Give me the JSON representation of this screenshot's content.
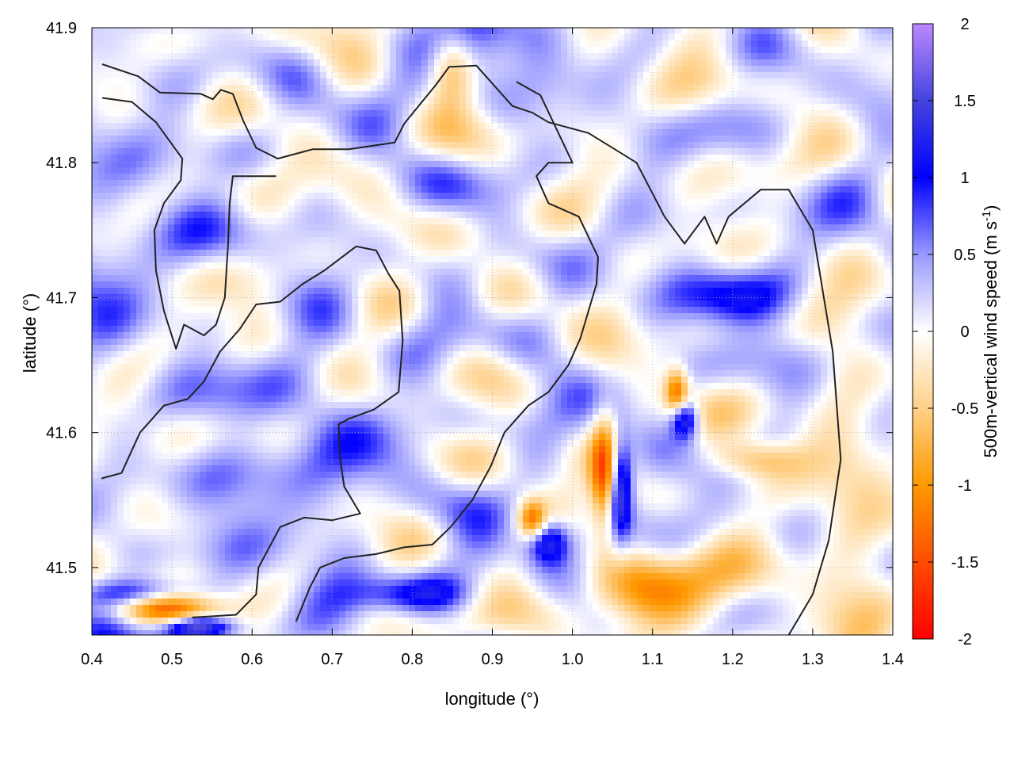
{
  "chart_data": {
    "type": "heatmap",
    "xlabel": "longitude (°)",
    "ylabel": "latitude (°)",
    "xlim": [
      0.4,
      1.4
    ],
    "ylim": [
      41.45,
      41.9
    ],
    "x_ticks": [
      0.4,
      0.5,
      0.6,
      0.7,
      0.8,
      0.9,
      1.0,
      1.1,
      1.2,
      1.3,
      1.4
    ],
    "y_ticks": [
      41.5,
      41.6,
      41.7,
      41.8,
      41.9
    ],
    "x_tick_labels": [
      "0.4",
      "0.5",
      "0.6",
      "0.7",
      "0.8",
      "0.9",
      "1.0",
      "1.1",
      "1.2",
      "1.3",
      "1.4"
    ],
    "y_tick_labels": [
      "41.5",
      "41.6",
      "41.7",
      "41.8",
      "41.9"
    ],
    "grid": true,
    "colorbar": {
      "label_main": "500m-vertical wind speed (m s",
      "label_sup": "-1",
      "label_end": ")",
      "range": [
        -2,
        2
      ],
      "ticks": [
        2,
        1.5,
        1,
        0.5,
        0,
        -0.5,
        -1,
        -1.5,
        -2
      ],
      "tick_labels": [
        "2",
        "1.5",
        "1",
        "0.5",
        "0",
        "-0.5",
        "-1",
        "-1.5",
        "-2"
      ],
      "palette": [
        {
          "value": -2,
          "color": "#ff0000"
        },
        {
          "value": -1,
          "color": "#ff9900"
        },
        {
          "value": -0.5,
          "color": "#ffd088"
        },
        {
          "value": 0,
          "color": "#ffffff"
        },
        {
          "value": 0.5,
          "color": "#9999ff"
        },
        {
          "value": 1,
          "color": "#0000ff"
        },
        {
          "value": 1.5,
          "color": "#4444dd"
        },
        {
          "value": 2,
          "color": "#bb88ff"
        }
      ]
    },
    "field_features": [
      {
        "lon": 1.04,
        "lat": 41.57,
        "value": -1.4,
        "sx": 0.012,
        "sy": 0.03
      },
      {
        "lon": 1.06,
        "lat": 41.56,
        "value": 1.6,
        "sx": 0.01,
        "sy": 0.025
      },
      {
        "lon": 0.97,
        "lat": 41.52,
        "value": 1.5,
        "sx": 0.02,
        "sy": 0.012
      },
      {
        "lon": 0.95,
        "lat": 41.535,
        "value": -1.3,
        "sx": 0.012,
        "sy": 0.01
      },
      {
        "lon": 1.13,
        "lat": 41.63,
        "value": -1.3,
        "sx": 0.01,
        "sy": 0.012
      },
      {
        "lon": 1.14,
        "lat": 41.61,
        "value": 1.5,
        "sx": 0.012,
        "sy": 0.01
      },
      {
        "lon": 0.49,
        "lat": 41.47,
        "value": -1.4,
        "sx": 0.05,
        "sy": 0.008
      },
      {
        "lon": 0.46,
        "lat": 41.48,
        "value": 1.1,
        "sx": 0.05,
        "sy": 0.008
      },
      {
        "lon": 0.53,
        "lat": 41.455,
        "value": 1.6,
        "sx": 0.03,
        "sy": 0.006
      },
      {
        "lon": 1.12,
        "lat": 41.48,
        "value": -1.0,
        "sx": 0.08,
        "sy": 0.02
      },
      {
        "lon": 1.23,
        "lat": 41.58,
        "value": -0.8,
        "sx": 0.04,
        "sy": 0.01
      },
      {
        "lon": 1.2,
        "lat": 41.7,
        "value": 0.9,
        "sx": 0.05,
        "sy": 0.015
      },
      {
        "lon": 0.88,
        "lat": 41.88,
        "value": 0.9,
        "sx": 0.03,
        "sy": 0.02
      },
      {
        "lon": 0.85,
        "lat": 41.87,
        "value": -0.8,
        "sx": 0.02,
        "sy": 0.02
      },
      {
        "lon": 0.8,
        "lat": 41.48,
        "value": 0.9,
        "sx": 0.05,
        "sy": 0.01
      },
      {
        "lon": 0.45,
        "lat": 41.75,
        "value": 0.4,
        "sx": 0.05,
        "sy": 0.05
      },
      {
        "lon": 0.65,
        "lat": 41.58,
        "value": 0.45,
        "sx": 0.08,
        "sy": 0.05
      },
      {
        "lon": 1.35,
        "lat": 41.55,
        "value": -0.5,
        "sx": 0.04,
        "sy": 0.06
      }
    ],
    "contours": [
      [
        [
          0.413,
          41.873
        ],
        [
          0.458,
          41.864
        ],
        [
          0.485,
          41.852
        ],
        [
          0.536,
          41.851
        ],
        [
          0.551,
          41.847
        ],
        [
          0.561,
          41.854
        ],
        [
          0.576,
          41.851
        ],
        [
          0.589,
          41.831
        ],
        [
          0.605,
          41.811
        ],
        [
          0.632,
          41.803
        ],
        [
          0.676,
          41.81
        ],
        [
          0.721,
          41.81
        ],
        [
          0.778,
          41.815
        ],
        [
          0.79,
          41.829
        ],
        [
          0.83,
          41.858
        ],
        [
          0.846,
          41.871
        ],
        [
          0.88,
          41.872
        ],
        [
          0.925,
          41.842
        ],
        [
          0.95,
          41.837
        ],
        [
          0.97,
          41.83
        ],
        [
          1.02,
          41.822
        ],
        [
          1.08,
          41.8
        ],
        [
          1.115,
          41.76
        ],
        [
          1.14,
          41.74
        ],
        [
          1.165,
          41.76
        ],
        [
          1.18,
          41.74
        ],
        [
          1.195,
          41.76
        ],
        [
          1.235,
          41.78
        ],
        [
          1.27,
          41.78
        ],
        [
          1.3,
          41.75
        ],
        [
          1.325,
          41.66
        ],
        [
          1.335,
          41.58
        ],
        [
          1.32,
          41.52
        ],
        [
          1.3,
          41.48
        ],
        [
          1.27,
          41.45
        ]
      ],
      [
        [
          0.413,
          41.848
        ],
        [
          0.45,
          41.845
        ],
        [
          0.48,
          41.83
        ],
        [
          0.513,
          41.803
        ],
        [
          0.511,
          41.787
        ],
        [
          0.49,
          41.77
        ],
        [
          0.478,
          41.75
        ],
        [
          0.48,
          41.72
        ],
        [
          0.49,
          41.69
        ],
        [
          0.505,
          41.662
        ],
        [
          0.515,
          41.68
        ],
        [
          0.54,
          41.672
        ],
        [
          0.555,
          41.68
        ],
        [
          0.566,
          41.7
        ],
        [
          0.57,
          41.74
        ],
        [
          0.572,
          41.77
        ],
        [
          0.576,
          41.79
        ],
        [
          0.6,
          41.79
        ],
        [
          0.63,
          41.79
        ]
      ],
      [
        [
          0.412,
          41.566
        ],
        [
          0.437,
          41.57
        ],
        [
          0.46,
          41.6
        ],
        [
          0.49,
          41.62
        ],
        [
          0.52,
          41.625
        ],
        [
          0.54,
          41.638
        ],
        [
          0.56,
          41.66
        ],
        [
          0.585,
          41.677
        ],
        [
          0.605,
          41.695
        ],
        [
          0.635,
          41.697
        ],
        [
          0.663,
          41.71
        ],
        [
          0.69,
          41.72
        ],
        [
          0.73,
          41.738
        ],
        [
          0.755,
          41.735
        ],
        [
          0.77,
          41.718
        ],
        [
          0.784,
          41.705
        ],
        [
          0.788,
          41.668
        ],
        [
          0.783,
          41.63
        ],
        [
          0.752,
          41.617
        ],
        [
          0.72,
          41.61
        ],
        [
          0.708,
          41.606
        ],
        [
          0.71,
          41.58
        ],
        [
          0.715,
          41.56
        ],
        [
          0.735,
          41.54
        ],
        [
          0.7,
          41.535
        ],
        [
          0.665,
          41.537
        ],
        [
          0.635,
          41.53
        ],
        [
          0.608,
          41.5
        ],
        [
          0.605,
          41.48
        ],
        [
          0.58,
          41.465
        ],
        [
          0.525,
          41.463
        ]
      ],
      [
        [
          0.655,
          41.46
        ],
        [
          0.672,
          41.485
        ],
        [
          0.685,
          41.5
        ],
        [
          0.715,
          41.507
        ],
        [
          0.755,
          41.51
        ],
        [
          0.79,
          41.515
        ],
        [
          0.825,
          41.517
        ],
        [
          0.848,
          41.53
        ],
        [
          0.875,
          41.55
        ],
        [
          0.898,
          41.575
        ],
        [
          0.915,
          41.6
        ],
        [
          0.945,
          41.62
        ],
        [
          0.97,
          41.63
        ],
        [
          0.995,
          41.65
        ],
        [
          1.01,
          41.67
        ],
        [
          1.02,
          41.69
        ],
        [
          1.03,
          41.71
        ],
        [
          1.032,
          41.73
        ],
        [
          1.008,
          41.76
        ],
        [
          0.97,
          41.77
        ],
        [
          0.955,
          41.79
        ],
        [
          0.97,
          41.8
        ],
        [
          1.0,
          41.8
        ],
        [
          0.96,
          41.85
        ],
        [
          0.93,
          41.86
        ]
      ]
    ]
  }
}
